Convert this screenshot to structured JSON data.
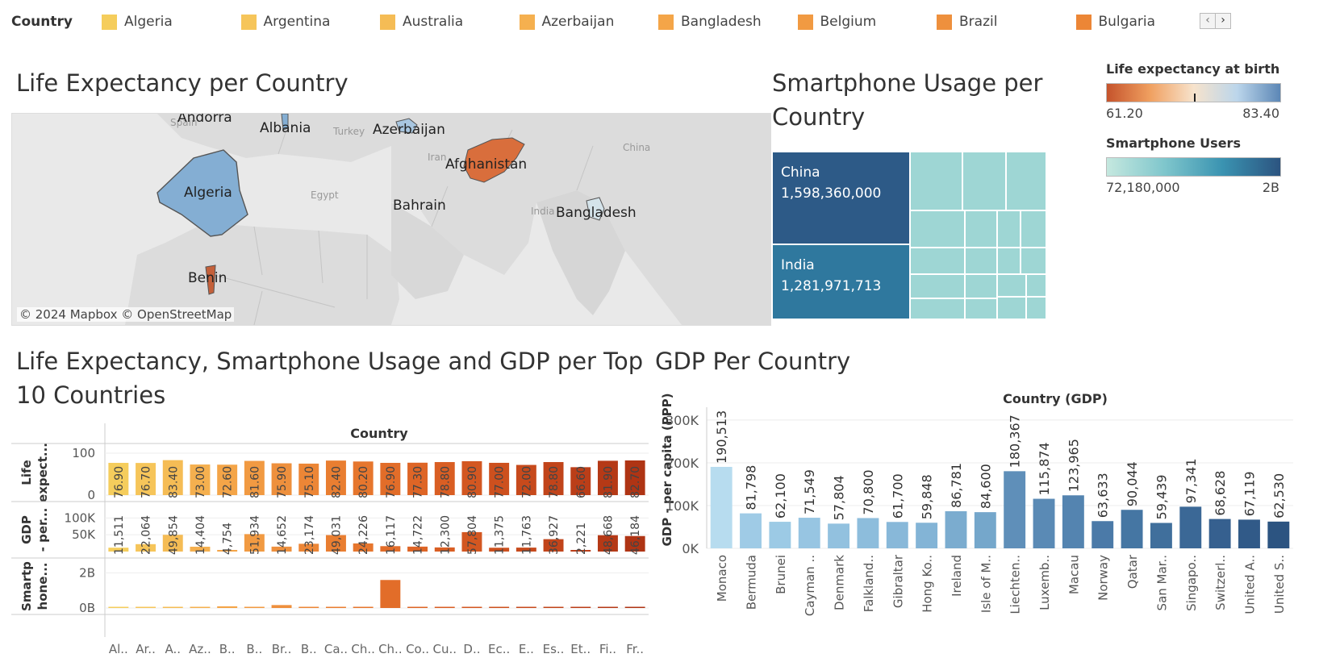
{
  "legend": {
    "title": "Country",
    "items": [
      {
        "label": "Algeria",
        "color": "#f5cd5c"
      },
      {
        "label": "Argentina",
        "color": "#f6c55a"
      },
      {
        "label": "Australia",
        "color": "#f5bc55"
      },
      {
        "label": "Azerbaijan",
        "color": "#f5b04f"
      },
      {
        "label": "Bangladesh",
        "color": "#f4a548"
      },
      {
        "label": "Belgium",
        "color": "#f19a42"
      },
      {
        "label": "Brazil",
        "color": "#ee903d"
      },
      {
        "label": "Bulgaria",
        "color": "#ec8636"
      }
    ],
    "prev": "‹",
    "next": "›"
  },
  "map_section": {
    "title": "Life Expectancy per Country",
    "credit": "© 2024 Mapbox  © OpenStreetMap",
    "labels": [
      "Andorra",
      "Albania",
      "Azerbaijan",
      "Algeria",
      "Afghanistan",
      "Bahrain",
      "Bangladesh",
      "Benin"
    ],
    "faint_labels": [
      "Spain",
      "Turkey",
      "Iran",
      "Egypt",
      "China",
      "India"
    ]
  },
  "treemap_section": {
    "title_line1": "Smartphone Usage per",
    "title_line2": "Country",
    "cells": [
      {
        "label": "China",
        "value": "1,598,360,000",
        "color": "#2d5a87"
      },
      {
        "label": "India",
        "value": "1,281,971,713",
        "color": "#2f789e"
      }
    ],
    "small_cell_color": "#9ed6d4"
  },
  "color_legends": {
    "life_title": "Life expectancy at birth",
    "life_min": "61.20",
    "life_max": "83.40",
    "smart_title": "Smartphone Users",
    "smart_min": "72,180,000",
    "smart_max": "2B"
  },
  "top10_section": {
    "title_line1": "Life Expectancy, Smartphone Usage and GDP per Top",
    "title_line2": "10 Countries",
    "column_header": "Country"
  },
  "gdp_section": {
    "title": "GDP Per Country",
    "chart_title": "Country (GDP)"
  },
  "chart_data": [
    {
      "type": "bar",
      "title": "Life Expectancy, Smartphone Usage and GDP per Top 10 Countries",
      "xlabel": "Country",
      "categories": [
        "Al..",
        "Ar..",
        "A..",
        "Az..",
        "B..",
        "B..",
        "Br..",
        "B..",
        "Ca..",
        "Ch..",
        "Ch..",
        "Co..",
        "Cu..",
        "D..",
        "Ec..",
        "E..",
        "Es..",
        "Et..",
        "Fi..",
        "Fr.."
      ],
      "colors": [
        "#f5cd5c",
        "#f6c55a",
        "#f5bc55",
        "#f5b04f",
        "#f4a548",
        "#f19a42",
        "#ee903d",
        "#ec8636",
        "#e97e31",
        "#e6762d",
        "#e26d29",
        "#de6526",
        "#d95e23",
        "#d35721",
        "#cd501e",
        "#c74a1c",
        "#c1441a",
        "#bb3e18",
        "#b53916",
        "#af3414"
      ],
      "series": [
        {
          "name": "Life expect...",
          "ylabel": "Life expect...",
          "yticks": [
            "100",
            "0"
          ],
          "ylim": [
            0,
            100
          ],
          "values": [
            76.9,
            76.7,
            83.4,
            73.0,
            72.6,
            81.6,
            75.9,
            75.1,
            82.4,
            80.2,
            76.9,
            77.3,
            78.8,
            80.9,
            77.0,
            72.0,
            78.8,
            66.6,
            81.9,
            82.7
          ],
          "labels": [
            "76.90",
            "76.70",
            "83.40",
            "73.00",
            "72.60",
            "81.60",
            "75.90",
            "75.10",
            "82.40",
            "80.20",
            "76.90",
            "77.30",
            "78.80",
            "80.90",
            "77.00",
            "72.00",
            "78.80",
            "66.60",
            "81.90",
            "82.70"
          ]
        },
        {
          "name": "GDP - per...",
          "ylabel": "GDP - per...",
          "yticks": [
            "100K",
            "50K"
          ],
          "ylim": [
            0,
            120000
          ],
          "values": [
            11511,
            22064,
            49854,
            14404,
            4754,
            51934,
            14652,
            23174,
            49031,
            24226,
            16117,
            14722,
            12300,
            57804,
            11375,
            11763,
            36927,
            2221,
            48668,
            46184
          ],
          "labels": [
            "11,511",
            "22,064",
            "49,854",
            "14,404",
            "4,754",
            "51,934",
            "14,652",
            "23,174",
            "49,031",
            "24,226",
            "16,117",
            "14,722",
            "12,300",
            "57,804",
            "11,375",
            "11,763",
            "36,927",
            "2,221",
            "48,668",
            "46,184"
          ]
        },
        {
          "name": "Smartphone...",
          "ylabel": "Smartp hone...",
          "yticks": [
            "2B",
            "0B"
          ],
          "ylim": [
            0,
            2300000000
          ],
          "values": [
            24000000,
            36000000,
            20000000,
            8000000,
            97000000,
            9000000,
            168000000,
            6000000,
            33000000,
            14000000,
            1598360000,
            33000000,
            8000000,
            5000000,
            12000000,
            61000000,
            1000000,
            6000000,
            6000000,
            58000000
          ]
        }
      ]
    },
    {
      "type": "bar",
      "title": "Country (GDP)",
      "xlabel": "Country (GDP)",
      "ylabel": "GDP - per capita (PPP)",
      "ylim": [
        0,
        330000
      ],
      "yticks": [
        "300K",
        "200K",
        "100K",
        "0K"
      ],
      "categories": [
        "Monaco",
        "Bermuda",
        "Brunei",
        "Cayman ..",
        "Denmark",
        "Falkland..",
        "Gibraltar",
        "Hong Ko..",
        "Ireland",
        "Isle of M..",
        "Liechten..",
        "Luxemb..",
        "Macau",
        "Norway",
        "Qatar",
        "San Mar..",
        "Singapo..",
        "Switzerl..",
        "United A..",
        "United S.."
      ],
      "values": [
        190513,
        81798,
        62100,
        71549,
        57804,
        70800,
        61700,
        59848,
        86781,
        84600,
        180367,
        115874,
        123965,
        63633,
        90044,
        59439,
        97341,
        68628,
        67119,
        62530
      ],
      "labels": [
        "190,513",
        "81,798",
        "62,100",
        "71,549",
        "57,804",
        "70,800",
        "61,700",
        "59,848",
        "86,781",
        "84,600",
        "180,367",
        "115,874",
        "123,965",
        "63,633",
        "90,044",
        "59,439",
        "97,341",
        "68,628",
        "67,119",
        "62,530"
      ],
      "colors": [
        "#b7dcef",
        "#9fcbe6",
        "#9ccae5",
        "#97c5e2",
        "#92c1df",
        "#8dbddc",
        "#88b8d9",
        "#83b4d6",
        "#7baccf",
        "#75a7cb",
        "#5f8fb9",
        "#5a8ab5",
        "#5484b0",
        "#4b7aa8",
        "#4576a3",
        "#406f9c",
        "#3b6896",
        "#36608f",
        "#315a88",
        "#2c5481"
      ]
    }
  ]
}
